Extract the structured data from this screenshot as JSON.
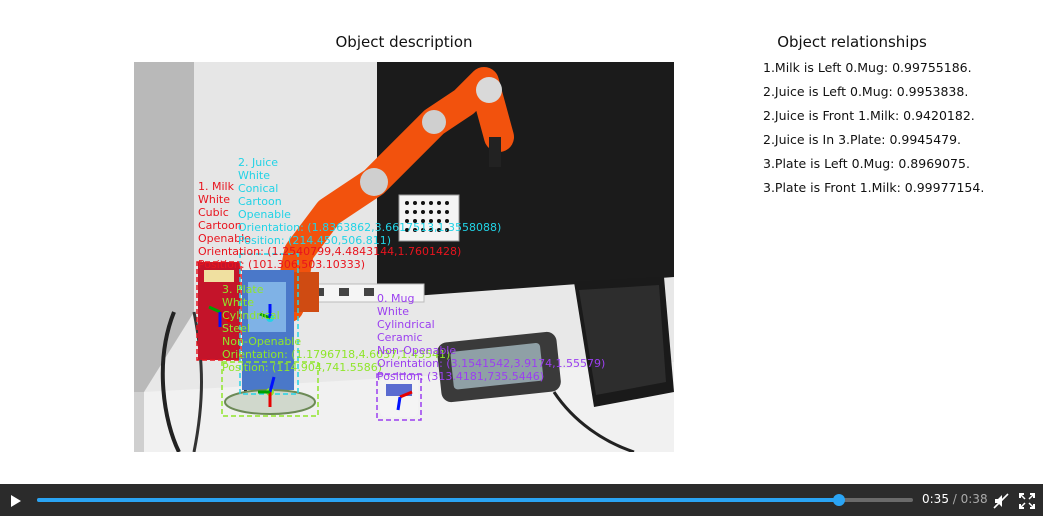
{
  "panel_titles": {
    "description": "Object description",
    "relationships": "Object relationships"
  },
  "relationships": [
    "1.Milk is Left 0.Mug: 0.99755186.",
    "2.Juice is Left 0.Mug: 0.9953838.",
    "2.Juice is Front 1.Milk: 0.9420182.",
    "2.Juice is In 3.Plate: 0.9945479.",
    "3.Plate is Left 0.Mug: 0.8969075.",
    "3.Plate is Front 1.Milk: 0.99977154."
  ],
  "objects": {
    "milk": {
      "color": "#e8141e",
      "lines": [
        "1. Milk",
        "White",
        "Cubic",
        "Cartoon",
        "Openable",
        "Orientation: (1.2540799,4.4843144,1.7601428)",
        "Position: (101.306,503.10333)"
      ]
    },
    "juice": {
      "color": "#22d3e6",
      "lines": [
        "2. Juice",
        "White",
        "Conical",
        "Cartoon",
        "Openable",
        "Orientation: (1.8363862,3.6617513,1.3558088)",
        "Position: (214.450,506.811)"
      ]
    },
    "plate": {
      "color": "#8fe62a",
      "lines": [
        "3. Plate",
        "White",
        "Cylindrical",
        "Steel",
        "Non-Openable",
        "Orientation: (1.1796718,4.6037,1.43541)",
        "Position: (114.904,741.5586)"
      ]
    },
    "mug": {
      "color": "#9b3ff0",
      "lines": [
        "0. Mug",
        "White",
        "Cylindrical",
        "Ceramic",
        "Non-Openable",
        "Orientation: (3.1541542,3.9174,1.55579)",
        "Position: (313.4181,735.5446)"
      ]
    }
  },
  "player": {
    "current_time": "0:35",
    "separator": " / ",
    "duration": "0:38",
    "progress_fraction": 0.915,
    "accent_color": "#2aa4f4",
    "icons": {
      "play": "play-icon",
      "mute": "volume-muted-icon",
      "fullscreen": "fullscreen-icon"
    }
  }
}
